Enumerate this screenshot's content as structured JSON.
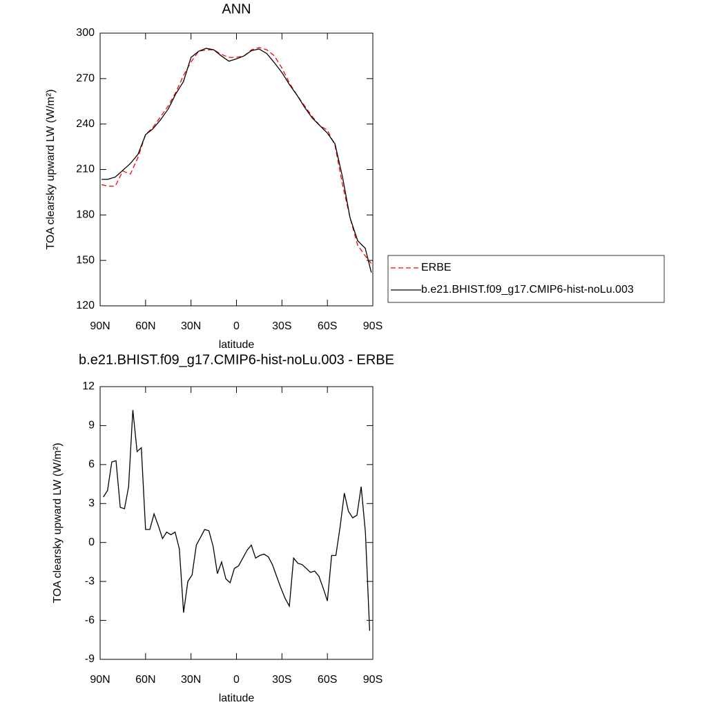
{
  "chart_data": [
    {
      "type": "line",
      "title": "ANN",
      "xlabel": "latitude",
      "ylabel": "TOA clearsky upward LW (W/m²)",
      "x": [
        89,
        85,
        80,
        75,
        70,
        65,
        60,
        55,
        50,
        45,
        40,
        35,
        30,
        25,
        20,
        15,
        10,
        5,
        0,
        -5,
        -10,
        -15,
        -20,
        -25,
        -30,
        -35,
        -40,
        -45,
        -50,
        -55,
        -60,
        -65,
        -70,
        -75,
        -80,
        -85,
        -89
      ],
      "series": [
        {
          "name": "ERBE",
          "color": "#ff0000",
          "dashed": true,
          "values": [
            200,
            199,
            199,
            209,
            207,
            218,
            233,
            238,
            245,
            252,
            261,
            272,
            281,
            288,
            289,
            289,
            286,
            284,
            284,
            285,
            289,
            290.5,
            289,
            285,
            277,
            267,
            259,
            252,
            245,
            239,
            236,
            226,
            200,
            178,
            160,
            153,
            148
          ]
        },
        {
          "name": "b.e21.BHIST.f09_g17.CMIP6-hist-noLu.003",
          "color": "#000000",
          "dashed": false,
          "values": [
            203.5,
            203.5,
            205,
            209.5,
            214,
            220,
            233,
            237,
            243,
            250,
            260,
            268,
            284,
            288,
            290,
            289,
            285,
            281.5,
            283,
            285,
            288.5,
            289.5,
            286.5,
            280.5,
            274,
            266,
            259,
            251,
            244,
            239,
            234,
            227,
            205,
            178,
            163,
            158,
            142
          ]
        }
      ],
      "xlim": [
        90,
        -90
      ],
      "xticks": [
        {
          "value": 90,
          "label": "90N"
        },
        {
          "value": 60,
          "label": "60N"
        },
        {
          "value": 30,
          "label": "30N"
        },
        0,
        {
          "value": -30,
          "label": "30S"
        },
        {
          "value": -60,
          "label": "60S"
        },
        {
          "value": -90,
          "label": "90S"
        }
      ],
      "ylim": [
        120,
        300
      ],
      "yticks": [
        120,
        150,
        180,
        210,
        240,
        270,
        300
      ],
      "legend": "right"
    },
    {
      "type": "line",
      "title": "b.e21.BHIST.f09_g17.CMIP6-hist-noLu.003 - ERBE",
      "xlabel": "latitude",
      "ylabel": "TOA clearsky upward LW (W/m²)",
      "x": [
        87.9,
        85.1,
        82.3,
        79.5,
        76.7,
        73.9,
        71.2,
        68.4,
        65.6,
        62.8,
        60.0,
        57.2,
        54.4,
        51.6,
        48.8,
        46.1,
        43.3,
        40.5,
        37.7,
        34.9,
        32.1,
        29.3,
        26.5,
        23.7,
        21.0,
        18.2,
        15.4,
        12.6,
        9.8,
        7.0,
        4.2,
        1.4,
        -1.4,
        -4.2,
        -7.0,
        -9.8,
        -12.6,
        -15.4,
        -18.2,
        -21.0,
        -23.7,
        -26.5,
        -29.3,
        -32.1,
        -34.9,
        -37.7,
        -40.5,
        -43.3,
        -46.1,
        -48.8,
        -51.6,
        -54.4,
        -57.2,
        -60.0,
        -62.8,
        -65.6,
        -68.4,
        -71.2,
        -73.9,
        -76.7,
        -79.5,
        -82.3,
        -85.1,
        -87.9
      ],
      "values": [
        3.5,
        4.0,
        6.2,
        6.3,
        2.7,
        2.6,
        4.3,
        10.2,
        7.0,
        7.3,
        1.0,
        1.0,
        2.2,
        1.3,
        0.3,
        0.8,
        0.6,
        0.8,
        -0.5,
        -5.4,
        -3.0,
        -2.5,
        -0.2,
        0.4,
        1.0,
        0.9,
        -0.3,
        -2.4,
        -1.5,
        -2.8,
        -3.1,
        -2.0,
        -1.8,
        -1.2,
        -0.6,
        -0.2,
        -1.2,
        -1.0,
        -0.9,
        -1.1,
        -1.7,
        -2.6,
        -3.5,
        -4.3,
        -4.9,
        -1.2,
        -1.6,
        -1.7,
        -2.0,
        -2.3,
        -2.2,
        -2.6,
        -3.5,
        -4.5,
        -1.0,
        -1.0,
        1.2,
        3.8,
        2.4,
        1.9,
        2.1,
        4.3,
        0.8,
        -6.8
      ],
      "color": "#000000",
      "xlim": [
        90,
        -90
      ],
      "xticks": [
        {
          "value": 90,
          "label": "90N"
        },
        {
          "value": 60,
          "label": "60N"
        },
        {
          "value": 30,
          "label": "30N"
        },
        0,
        {
          "value": -30,
          "label": "30S"
        },
        {
          "value": -60,
          "label": "60S"
        },
        {
          "value": -90,
          "label": "90S"
        }
      ],
      "ylim": [
        -9,
        12
      ],
      "yticks": [
        -9,
        -6,
        -3,
        0,
        3,
        6,
        9,
        12
      ]
    }
  ]
}
